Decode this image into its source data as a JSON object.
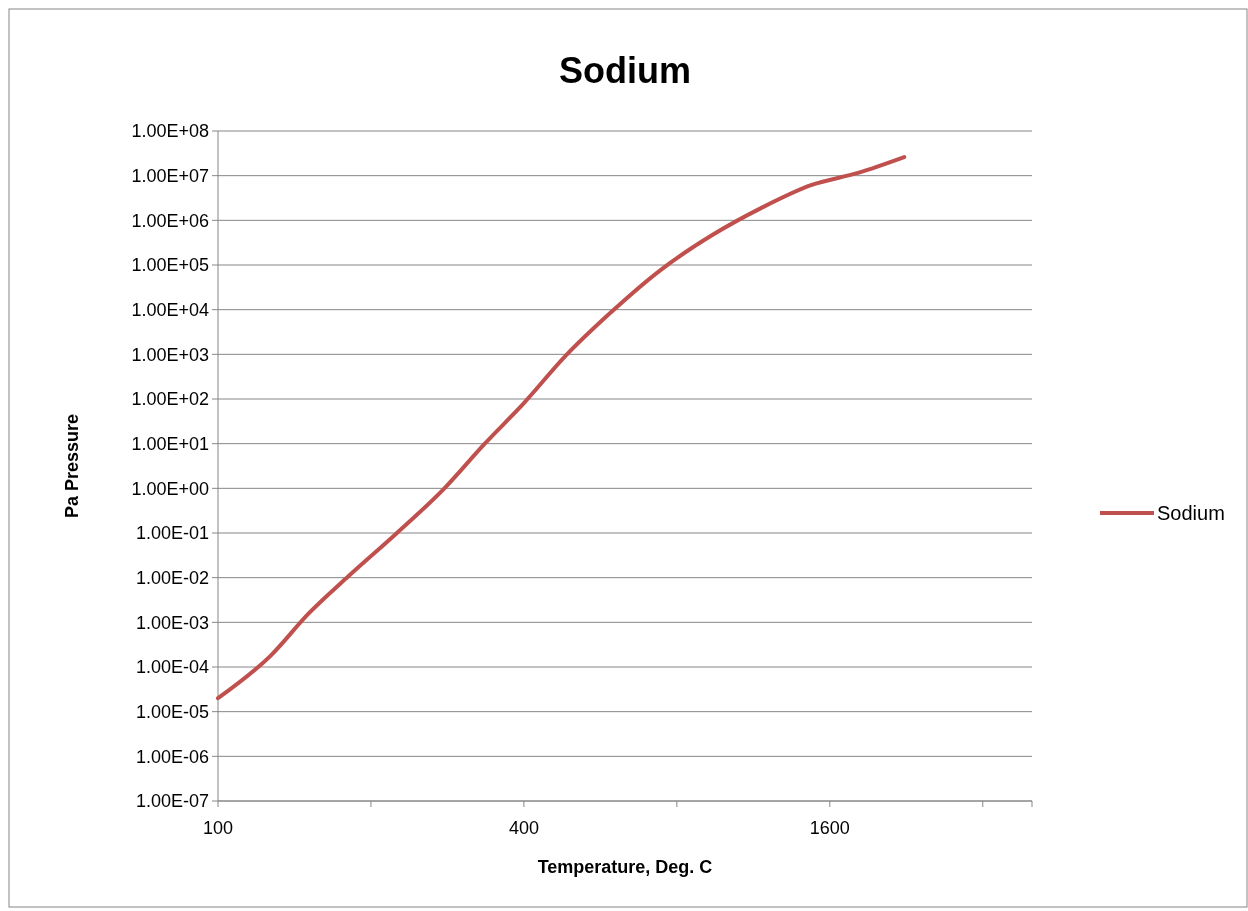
{
  "chart_data": {
    "type": "line",
    "title": "Sodium",
    "xlabel": "Temperature, Deg. C",
    "ylabel": "Pa Pressure",
    "log": "xy",
    "grid": "y",
    "legend": "right",
    "marker": "none",
    "line_style": "solid",
    "xlim": [
      100,
      4000
    ],
    "xticks": [
      100,
      {
        "value": 200,
        "label": null
      },
      400,
      {
        "value": 800,
        "label": null
      },
      1600,
      {
        "value": 3200,
        "label": null
      }
    ],
    "ylim": [
      1e-07,
      100000000.0
    ],
    "yticks": [
      {
        "value": 1e-07,
        "label": "1.00E-07"
      },
      {
        "value": 1e-06,
        "label": "1.00E-06"
      },
      {
        "value": 1e-05,
        "label": "1.00E-05"
      },
      {
        "value": 0.0001,
        "label": "1.00E-04"
      },
      {
        "value": 0.001,
        "label": "1.00E-03"
      },
      {
        "value": 0.01,
        "label": "1.00E-02"
      },
      {
        "value": 0.1,
        "label": "1.00E-01"
      },
      {
        "value": 1,
        "label": "1.00E+00"
      },
      {
        "value": 10,
        "label": "1.00E+01"
      },
      {
        "value": 100,
        "label": "1.00E+02"
      },
      {
        "value": 1000,
        "label": "1.00E+03"
      },
      {
        "value": 10000,
        "label": "1.00E+04"
      },
      {
        "value": 100000,
        "label": "1.00E+05"
      },
      {
        "value": 1000000,
        "label": "1.00E+06"
      },
      {
        "value": 10000000,
        "label": "1.00E+07"
      },
      {
        "value": 100000000,
        "label": "1.00E+08"
      }
    ],
    "series": [
      {
        "name": "Sodium",
        "color": "#c0504d",
        "x": [
          100,
          127,
          151,
          181,
          225,
          279,
          335,
          400,
          482,
          592,
          744,
          934,
          1174,
          1474,
          1818,
          2242
        ],
        "values": [
          2e-05,
          0.00018,
          0.0016,
          0.011,
          0.1,
          1,
          10,
          81,
          900,
          8500,
          78000,
          450000,
          1900000,
          6200000,
          11500000,
          26000000
        ]
      }
    ]
  }
}
